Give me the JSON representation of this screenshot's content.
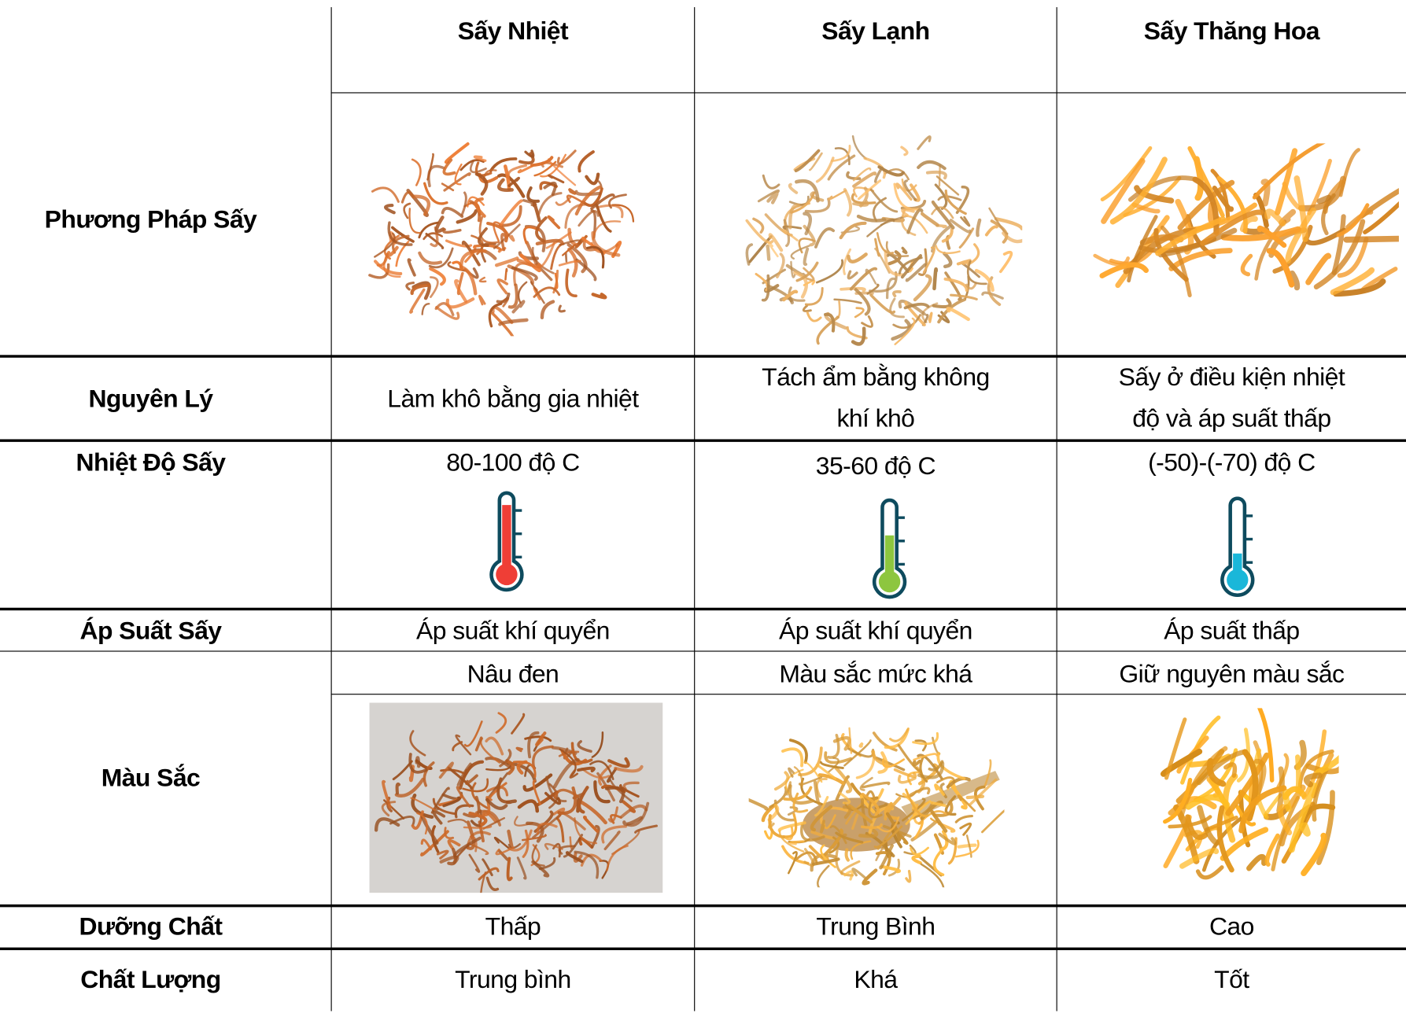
{
  "headers": [
    "Sấy Nhiệt",
    "Sấy Lạnh",
    "Sấy Thăng Hoa"
  ],
  "rows": {
    "phuong_phap": {
      "label": "Phương Pháp Sấy"
    },
    "nguyen_ly": {
      "label": "Nguyên Lý",
      "values": [
        "Làm khô bằng gia nhiệt",
        "Tách ẩm bằng không\nkhí khô",
        "Sấy ở điều kiện nhiệt\nđộ và áp suất thấp"
      ]
    },
    "nhiet_do": {
      "label": "Nhiệt Độ Sấy",
      "values": [
        "80-100 độ C",
        "35-60 độ C",
        "(-50)-(-70) độ C"
      ],
      "thermometers": [
        {
          "icon": "thermometer-hot-icon",
          "color": "#ef3e36",
          "level": 0.9
        },
        {
          "icon": "thermometer-warm-icon",
          "color": "#8dc63f",
          "level": 0.55
        },
        {
          "icon": "thermometer-cold-icon",
          "color": "#1ab7d9",
          "level": 0.25
        }
      ]
    },
    "ap_suat": {
      "label": "Áp Suất Sấy",
      "values": [
        "Áp suất khí quyển",
        "Áp suất khí quyển",
        "Áp suất thấp"
      ]
    },
    "mau_sac": {
      "label": "Màu Sắc",
      "values": [
        "Nâu đen",
        "Màu sắc mức khá",
        "Giữ nguyên màu sắc"
      ]
    },
    "duong_chat": {
      "label": "Dưỡng Chất",
      "values": [
        "Thấp",
        "Trung Bình",
        "Cao"
      ]
    },
    "chat_luong": {
      "label": "Chất Lượng",
      "values": [
        "Trung bình",
        "Khá",
        "Tốt"
      ]
    }
  },
  "colors": {
    "outline": "#0e4b5e",
    "heat_dried": "#c8682a",
    "cold_dried": "#d9a25a",
    "freeze_dried": "#f39a2a"
  }
}
